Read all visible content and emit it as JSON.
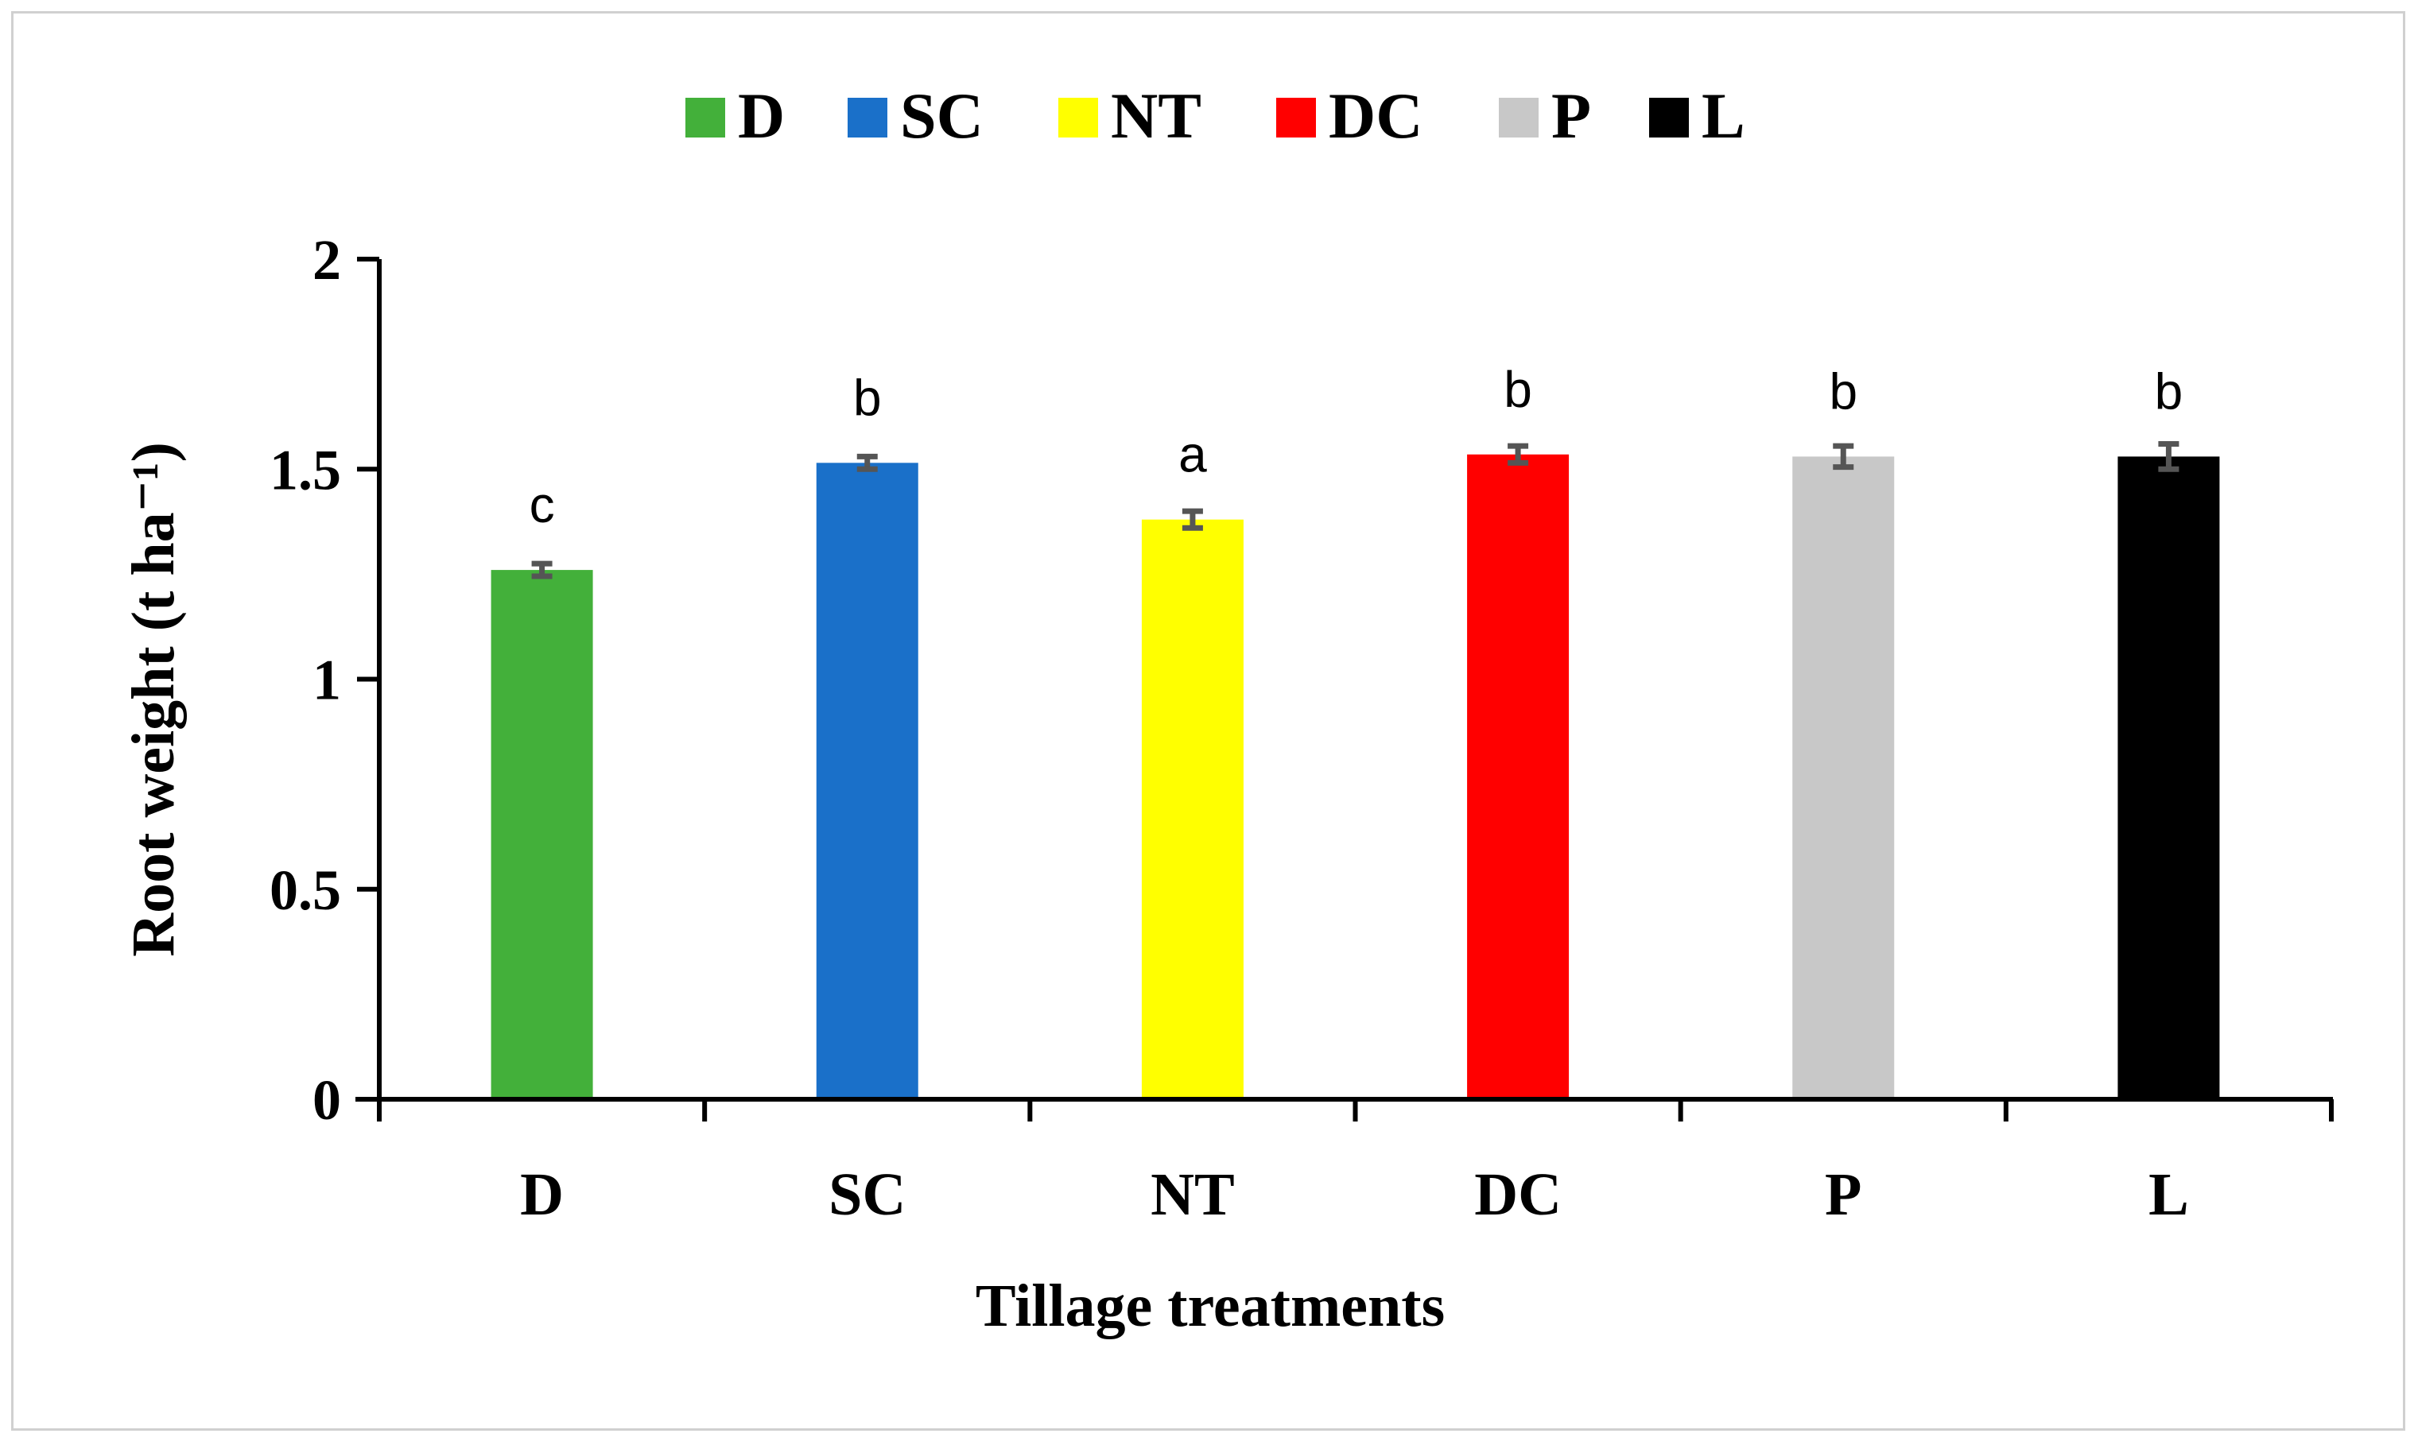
{
  "chart_data": {
    "type": "bar",
    "title": "",
    "xlabel": "Tillage treatments",
    "ylabel": "Root weight (t ha⁻¹)",
    "ylim": [
      0,
      2
    ],
    "yticks": [
      "0",
      "0.5",
      "1",
      "1.5",
      "2"
    ],
    "grid": false,
    "legend_position": "top-center",
    "categories": [
      "D",
      "SC",
      "NT",
      "DC",
      "P",
      "L"
    ],
    "values": [
      1.26,
      1.515,
      1.38,
      1.535,
      1.53,
      1.53
    ],
    "errors": [
      0.015,
      0.015,
      0.02,
      0.02,
      0.025,
      0.03
    ],
    "significance_letters": [
      "c",
      "b",
      "a",
      "b",
      "b",
      "b"
    ],
    "colors": [
      "#43b03a",
      "#1a70c9",
      "#ffff00",
      "#ff0000",
      "#c8c8c8",
      "#000000"
    ],
    "legend": [
      "D",
      "SC",
      "NT",
      "DC",
      "P",
      "L"
    ]
  }
}
